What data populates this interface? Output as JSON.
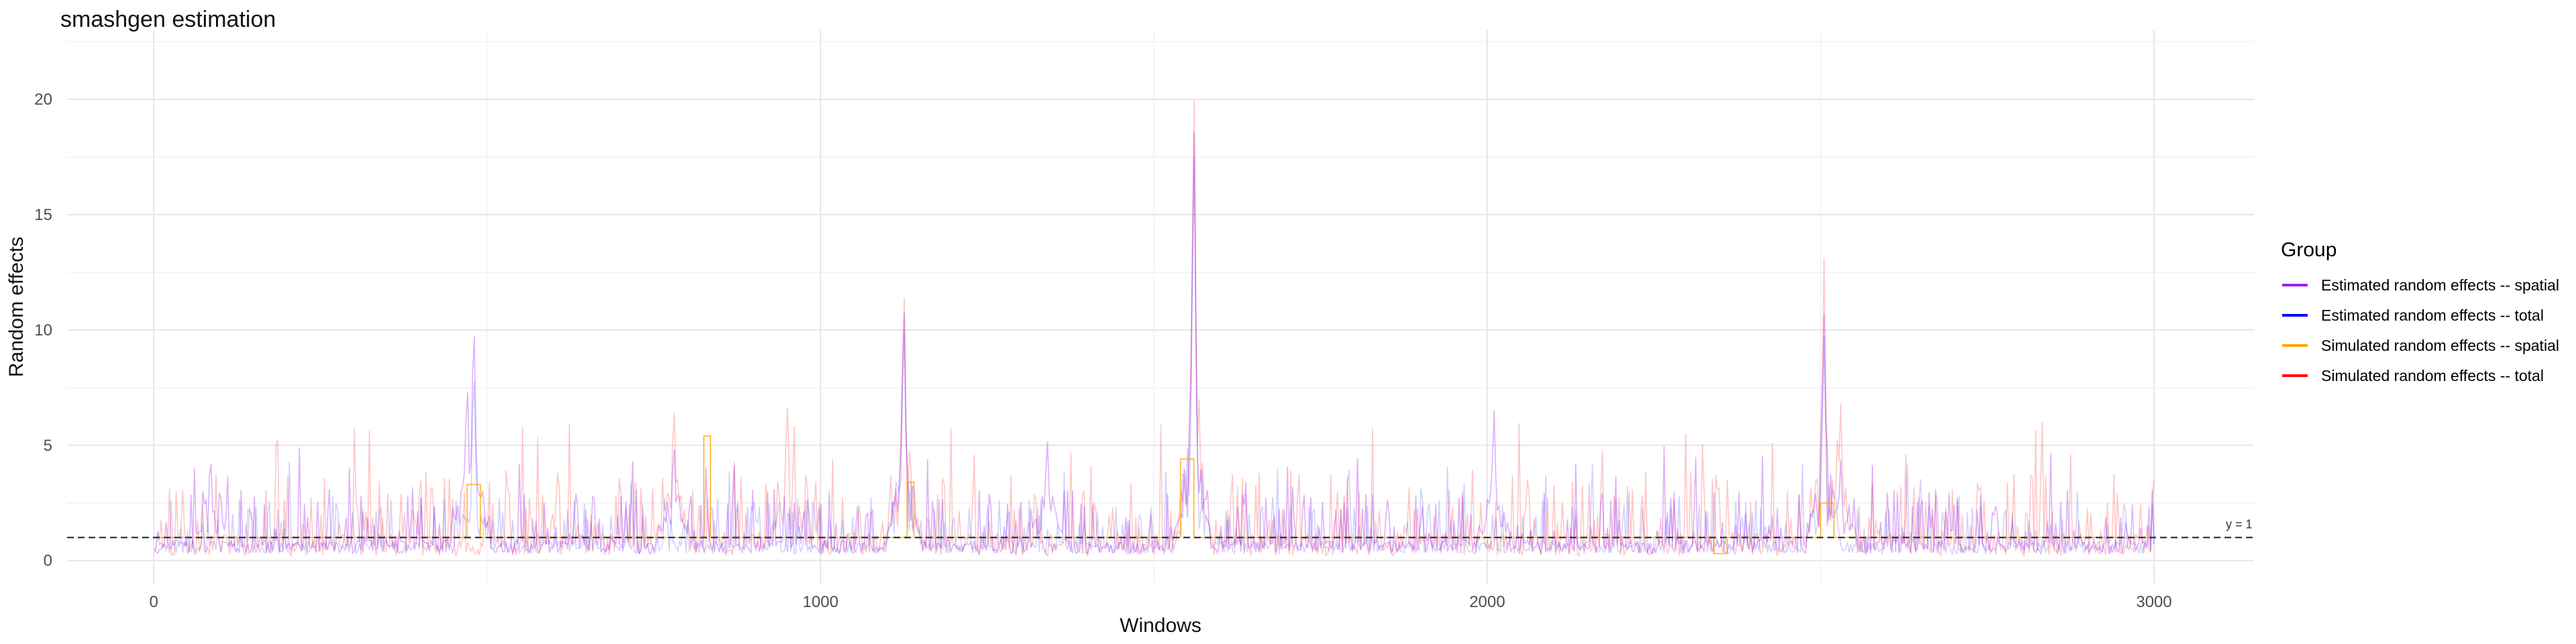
{
  "chart_data": {
    "type": "line",
    "title": "smashgen estimation",
    "xlabel": "Windows",
    "ylabel": "Random effects",
    "xlim": [
      -130,
      3150
    ],
    "ylim": [
      -1,
      23
    ],
    "x_ticks": [
      0,
      1000,
      2000,
      3000
    ],
    "x_tick_labels": [
      "0",
      "1000",
      "2000",
      "3000"
    ],
    "y_ticks": [
      0,
      5,
      10,
      15,
      20
    ],
    "y_tick_labels": [
      "0",
      "5",
      "10",
      "15",
      "20"
    ],
    "grid": true,
    "legend": {
      "title": "Group",
      "position": "right",
      "entries": [
        {
          "label": "Estimated random effects -- spatial",
          "color": "#A020F0"
        },
        {
          "label": "Estimated random effects -- total",
          "color": "#0000FF"
        },
        {
          "label": "Simulated random effects -- spatial",
          "color": "#FFA500"
        },
        {
          "label": "Simulated random effects -- total",
          "color": "#FF0000"
        }
      ]
    },
    "reference_line": {
      "y": 1,
      "label": "y = 1",
      "style": "dashed"
    },
    "x_range": [
      1,
      3000
    ],
    "series": [
      {
        "name": "Estimated random effects -- spatial",
        "color": "#A020F0",
        "baseline": 0.8,
        "noise_range": [
          0.3,
          5.0
        ],
        "peaks": [
          [
            470,
            8.5
          ],
          [
            480,
            11.3
          ],
          [
            780,
            5.5
          ],
          [
            1125,
            12.0
          ],
          [
            1555,
            8.5
          ],
          [
            1560,
            20.2
          ],
          [
            2010,
            6.9
          ],
          [
            2505,
            11.0
          ],
          [
            2530,
            4.5
          ],
          [
            85,
            5.0
          ],
          [
            1340,
            5.7
          ]
        ]
      },
      {
        "name": "Estimated random effects -- total",
        "color": "#0000FF",
        "baseline": 0.75,
        "noise_range": [
          0.3,
          4.5
        ],
        "peaks": [
          [
            480,
            9.0
          ],
          [
            1125,
            11.0
          ],
          [
            1560,
            19.0
          ],
          [
            2505,
            10.0
          ]
        ]
      },
      {
        "name": "Simulated random effects -- spatial",
        "color": "#FFA500",
        "baseline": 1.0,
        "steps": [
          [
            0,
            1.0
          ],
          [
            470,
            3.3
          ],
          [
            490,
            1.0
          ],
          [
            825,
            5.4
          ],
          [
            835,
            1.0
          ],
          [
            1130,
            3.4
          ],
          [
            1140,
            1.0
          ],
          [
            1540,
            4.4
          ],
          [
            1560,
            1.0
          ],
          [
            2340,
            0.3
          ],
          [
            2360,
            1.0
          ],
          [
            2500,
            2.5
          ],
          [
            2520,
            1.0
          ],
          [
            3000,
            1.0
          ]
        ]
      },
      {
        "name": "Simulated random effects -- total",
        "color": "#FF0000",
        "baseline": 1.0,
        "noise_range": [
          0.2,
          6.0
        ],
        "peaks": [
          [
            1560,
            21.7
          ],
          [
            2505,
            13.5
          ],
          [
            1125,
            12.7
          ],
          [
            780,
            7.3
          ],
          [
            950,
            7.5
          ],
          [
            2530,
            7.0
          ]
        ]
      }
    ]
  }
}
